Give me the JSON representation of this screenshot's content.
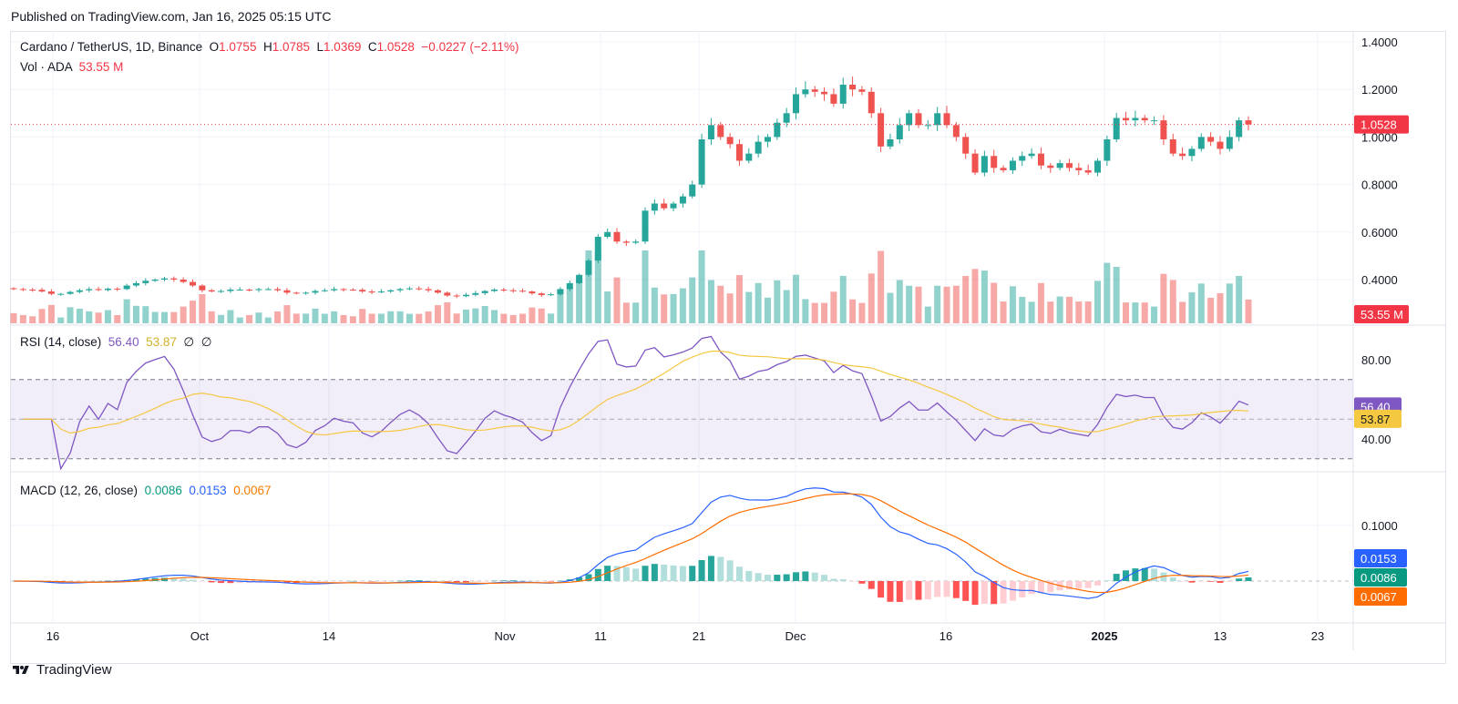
{
  "header": {
    "published": "Published on TradingView.com, Jan 16, 2025 05:15 UTC"
  },
  "main_legend": {
    "symbol": "Cardano / TetherUS, 1D, Binance",
    "o_label": "O",
    "o_value": "1.0755",
    "h_label": "H",
    "h_value": "1.0785",
    "l_label": "L",
    "l_value": "1.0369",
    "c_label": "C",
    "c_value": "1.0528",
    "change": "−0.0227 (−2.11%)",
    "vol_label": "Vol · ADA",
    "vol_value": "53.55 M"
  },
  "rsi_legend": {
    "label": "RSI (14, close)",
    "rsi": "56.40",
    "ma": "53.87",
    "x1": "∅",
    "x2": "∅"
  },
  "macd_legend": {
    "label": "MACD (12, 26, close)",
    "hist": "0.0086",
    "macd": "0.0153",
    "signal": "0.0067"
  },
  "footer": {
    "brand": "TradingView"
  },
  "colors": {
    "up": "#26a69a",
    "down": "#ef5350",
    "rsi": "#7e57c2",
    "rsi_ma": "#f5c842",
    "macd": "#2962ff",
    "signal": "#ff6d00",
    "grid": "#f0f3fa"
  },
  "chart_data": [
    {
      "type": "candlestick",
      "title": "Cardano / TetherUS, 1D, Binance",
      "x_ticks": [
        "16",
        "Oct",
        "14",
        "Nov",
        "11",
        "21",
        "Dec",
        "16",
        "2025",
        "13",
        "23"
      ],
      "y_ticks": [
        "1.4000",
        "1.2000",
        "1.0000",
        "0.8000",
        "0.6000",
        "0.4000"
      ],
      "ylim": [
        0.2,
        1.4
      ],
      "last_price": "1.0528",
      "volume_label": "53.55 M",
      "ohlc_close": [
        0.36,
        0.358,
        0.357,
        0.35,
        0.34,
        0.34,
        0.348,
        0.355,
        0.36,
        0.356,
        0.362,
        0.36,
        0.375,
        0.385,
        0.395,
        0.4,
        0.405,
        0.4,
        0.39,
        0.375,
        0.355,
        0.35,
        0.352,
        0.358,
        0.358,
        0.356,
        0.36,
        0.36,
        0.355,
        0.345,
        0.342,
        0.345,
        0.352,
        0.355,
        0.36,
        0.358,
        0.357,
        0.35,
        0.347,
        0.35,
        0.355,
        0.36,
        0.363,
        0.36,
        0.355,
        0.345,
        0.333,
        0.33,
        0.336,
        0.343,
        0.352,
        0.358,
        0.355,
        0.353,
        0.35,
        0.342,
        0.335,
        0.338,
        0.36,
        0.385,
        0.42,
        0.48,
        0.58,
        0.6,
        0.56,
        0.555,
        0.56,
        0.69,
        0.72,
        0.7,
        0.72,
        0.75,
        0.8,
        0.99,
        1.05,
        1.0,
        0.97,
        0.9,
        0.93,
        0.98,
        1.0,
        1.06,
        1.1,
        1.18,
        1.2,
        1.19,
        1.18,
        1.14,
        1.22,
        1.2,
        1.19,
        1.1,
        0.96,
        0.99,
        1.05,
        1.1,
        1.05,
        1.05,
        1.1,
        1.05,
        1.0,
        0.93,
        0.85,
        0.92,
        0.87,
        0.86,
        0.9,
        0.92,
        0.93,
        0.88,
        0.87,
        0.89,
        0.87,
        0.86,
        0.85,
        0.9,
        0.99,
        1.08,
        1.07,
        1.08,
        1.07,
        1.07,
        0.99,
        0.93,
        0.92,
        0.95,
        1.0,
        0.98,
        0.95,
        1.0,
        1.07,
        1.0528
      ],
      "rsi": {
        "label": "RSI (14, close)",
        "value": 56.4,
        "ma": 53.87,
        "y_ticks": [
          "80.00",
          "40.00"
        ]
      },
      "macd": {
        "label": "MACD (12, 26, close)",
        "histogram": 0.0086,
        "macd": 0.0153,
        "signal": 0.0067,
        "y_ticks": [
          "0.1000"
        ]
      }
    }
  ]
}
